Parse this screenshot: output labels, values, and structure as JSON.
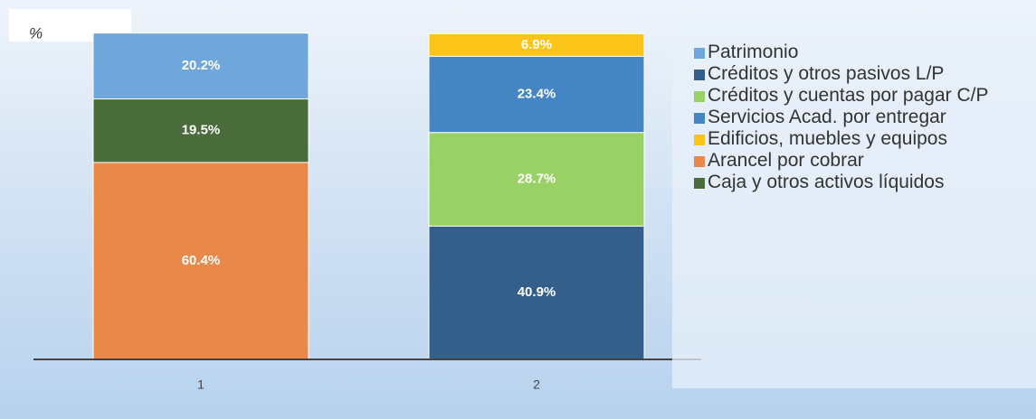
{
  "chart_data": {
    "type": "stacked_bar",
    "y_label": "%",
    "categories": [
      "1",
      "2"
    ],
    "ylim": [
      0,
      100
    ],
    "series": [
      {
        "name": "Créditos y otros pasivos L/P",
        "color": "#335f8a",
        "values": [
          null,
          40.9
        ],
        "value_labels": [
          null,
          "40.9%"
        ]
      },
      {
        "name": "Arancel por cobrar",
        "color": "#e8894a",
        "values": [
          60.4,
          null
        ],
        "value_labels": [
          "60.4%",
          null
        ]
      },
      {
        "name": "Créditos y cuentas por pagar C/P",
        "color": "#98d266",
        "values": [
          null,
          28.7
        ],
        "value_labels": [
          null,
          "28.7%"
        ]
      },
      {
        "name": "Caja y otros activos líquidos",
        "color": "#4a6b3a",
        "values": [
          19.5,
          null
        ],
        "value_labels": [
          "19.5%",
          null
        ]
      },
      {
        "name": "Servicios Acad. por entregar",
        "color": "#4585c4",
        "values": [
          null,
          23.4
        ],
        "value_labels": [
          null,
          "23.4%"
        ]
      },
      {
        "name": "Patrimonio",
        "color": "#6fa6dc",
        "values": [
          20.2,
          null
        ],
        "value_labels": [
          "20.2%",
          null
        ]
      },
      {
        "name": "Edificios, muebles y equipos",
        "color": "#fcc419",
        "values": [
          null,
          6.9
        ],
        "value_labels": [
          null,
          "6.9%"
        ]
      }
    ]
  }
}
